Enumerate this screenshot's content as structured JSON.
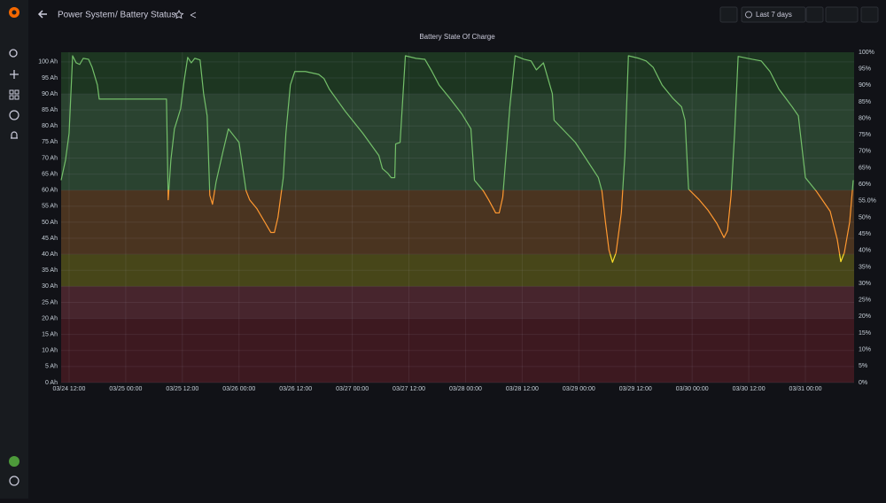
{
  "ui": {
    "breadcrumb_folder": "Power System",
    "breadcrumb_title": "/ Battery Status",
    "time_range": "Last 7 days"
  },
  "chart_data": {
    "type": "line",
    "title": "Battery State Of Charge",
    "x": [
      "03/24 10:19",
      "03/24 11:15",
      "03/24 12:00",
      "03/24 12:45",
      "03/24 13:30",
      "03/24 14:15",
      "03/24 15:00",
      "03/24 16:08",
      "03/24 16:53",
      "03/24 18:00",
      "03/24 18:23",
      "03/25 08:38",
      "03/25 09:00",
      "03/25 09:34",
      "03/25 10:19",
      "03/25 10:53",
      "03/25 11:38",
      "03/25 12:23",
      "03/25 13:08",
      "03/25 13:53",
      "03/25 14:38",
      "03/25 15:45",
      "03/25 16:30",
      "03/25 17:15",
      "03/25 17:49",
      "03/25 18:23",
      "03/25 19:08",
      "03/25 20:38",
      "03/25 21:45",
      "03/25 23:15",
      "03/26 00:00",
      "03/26 01:30",
      "03/26 02:15",
      "03/26 03:45",
      "03/26 05:38",
      "03/26 06:45",
      "03/26 07:30",
      "03/26 08:15",
      "03/26 09:23",
      "03/26 09:56",
      "03/26 10:53",
      "03/26 11:49",
      "03/26 14:04",
      "03/26 16:53",
      "03/26 18:00",
      "03/26 19:08",
      "03/26 22:30",
      "03/27 02:15",
      "03/27 05:38",
      "03/27 06:23",
      "03/27 07:30",
      "03/27 08:15",
      "03/27 09:00",
      "03/27 09:11",
      "03/27 10:08",
      "03/27 11:15",
      "03/27 13:30",
      "03/27 15:23",
      "03/27 16:53",
      "03/27 18:23",
      "03/27 20:38",
      "03/27 23:15",
      "03/28 01:08",
      "03/28 01:53",
      "03/28 03:45",
      "03/28 04:53",
      "03/28 06:23",
      "03/28 07:08",
      "03/28 07:53",
      "03/28 09:23",
      "03/28 10:30",
      "03/28 12:23",
      "03/28 13:53",
      "03/28 15:00",
      "03/28 16:30",
      "03/28 18:23",
      "03/28 18:45",
      "03/28 23:15",
      "03/29 04:08",
      "03/29 04:53",
      "03/29 05:38",
      "03/29 06:23",
      "03/29 07:08",
      "03/29 07:53",
      "03/29 09:00",
      "03/29 09:45",
      "03/29 10:30",
      "03/29 12:45",
      "03/29 14:15",
      "03/29 15:45",
      "03/29 17:38",
      "03/29 19:53",
      "03/29 21:45",
      "03/29 22:30",
      "03/29 23:15",
      "03/30 01:30",
      "03/30 03:23",
      "03/30 05:15",
      "03/30 06:45",
      "03/30 07:30",
      "03/30 08:15",
      "03/30 09:00",
      "03/30 09:45",
      "03/30 12:45",
      "03/30 14:38",
      "03/30 16:30",
      "03/30 18:23",
      "03/30 21:11",
      "03/30 22:30",
      "03/31 00:00",
      "03/31 02:15",
      "03/31 05:15",
      "03/31 06:45",
      "03/31 07:30",
      "03/31 08:15",
      "03/31 09:23",
      "03/31 10:08"
    ],
    "values": [
      63.1,
      69.4,
      77.7,
      101.9,
      99.7,
      99.2,
      101.1,
      100.8,
      98.3,
      92.8,
      88.4,
      88.4,
      57.0,
      69.4,
      79.1,
      81.8,
      85.4,
      94.2,
      101.4,
      99.7,
      101.1,
      100.6,
      90.1,
      83.2,
      58.4,
      55.6,
      62.5,
      72.2,
      79.1,
      76.3,
      74.9,
      59.8,
      57.0,
      54.3,
      49.6,
      46.8,
      46.8,
      51.5,
      63.9,
      77.7,
      92.8,
      97.0,
      97.0,
      96.1,
      94.8,
      91.5,
      84.6,
      77.7,
      70.8,
      66.7,
      65.3,
      63.9,
      63.9,
      74.4,
      74.9,
      101.9,
      101.1,
      100.8,
      97.0,
      92.8,
      88.7,
      83.7,
      79.1,
      63.1,
      59.8,
      57.0,
      52.9,
      52.9,
      57.9,
      86.0,
      101.9,
      100.8,
      100.3,
      97.5,
      99.7,
      90.1,
      81.8,
      74.9,
      63.9,
      59.8,
      50.1,
      41.3,
      37.5,
      40.5,
      52.9,
      70.8,
      101.9,
      101.1,
      100.3,
      98.3,
      92.8,
      88.7,
      86.0,
      81.8,
      60.3,
      57.0,
      53.7,
      49.6,
      45.2,
      47.4,
      58.4,
      77.7,
      101.7,
      100.8,
      100.3,
      97.0,
      91.5,
      86.0,
      83.2,
      63.9,
      59.8,
      53.4,
      44.6,
      37.7,
      40.5,
      50.1,
      63.1
    ],
    "xlim": [
      "03/24 10:19",
      "03/31 10:19"
    ],
    "xticks": [
      "03/24 12:00",
      "03/25 00:00",
      "03/25 12:00",
      "03/26 00:00",
      "03/26 12:00",
      "03/27 00:00",
      "03/27 12:00",
      "03/28 00:00",
      "03/28 12:00",
      "03/29 00:00",
      "03/29 12:00",
      "03/30 00:00",
      "03/30 12:00",
      "03/31 00:00"
    ],
    "ylim": [
      0,
      103
    ],
    "yticks": [
      {
        "value": 0,
        "label": "0 Ah"
      },
      {
        "value": 5,
        "label": "5 Ah"
      },
      {
        "value": 10,
        "label": "10 Ah"
      },
      {
        "value": 15,
        "label": "15 Ah"
      },
      {
        "value": 20,
        "label": "20 Ah"
      },
      {
        "value": 25,
        "label": "25 Ah"
      },
      {
        "value": 30,
        "label": "30 Ah"
      },
      {
        "value": 35,
        "label": "35 Ah"
      },
      {
        "value": 40,
        "label": "40 Ah"
      },
      {
        "value": 45,
        "label": "45 Ah"
      },
      {
        "value": 50,
        "label": "50 Ah"
      },
      {
        "value": 55,
        "label": "55 Ah"
      },
      {
        "value": 60,
        "label": "60 Ah"
      },
      {
        "value": 65,
        "label": "65 Ah"
      },
      {
        "value": 70,
        "label": "70 Ah"
      },
      {
        "value": 75,
        "label": "75 Ah"
      },
      {
        "value": 80,
        "label": "80 Ah"
      },
      {
        "value": 85,
        "label": "85 Ah"
      },
      {
        "value": 90,
        "label": "90 Ah"
      },
      {
        "value": 95,
        "label": "95 Ah"
      },
      {
        "value": 100,
        "label": "100 Ah"
      }
    ],
    "y2lim": [
      0,
      100
    ],
    "y2ticks": [
      {
        "value": 0,
        "label": "0%"
      },
      {
        "value": 5,
        "label": "5%"
      },
      {
        "value": 10,
        "label": "10%"
      },
      {
        "value": 15,
        "label": "15%"
      },
      {
        "value": 20,
        "label": "20%"
      },
      {
        "value": 25,
        "label": "25%"
      },
      {
        "value": 30,
        "label": "30%"
      },
      {
        "value": 35,
        "label": "35%"
      },
      {
        "value": 40,
        "label": "40%"
      },
      {
        "value": 45,
        "label": "45%"
      },
      {
        "value": 50,
        "label": "50%"
      },
      {
        "value": 55,
        "label": "55.0%"
      },
      {
        "value": 60,
        "label": "60%"
      },
      {
        "value": 65,
        "label": "65%"
      },
      {
        "value": 70,
        "label": "70%"
      },
      {
        "value": 75,
        "label": "75%"
      },
      {
        "value": 80,
        "label": "80%"
      },
      {
        "value": 85,
        "label": "85%"
      },
      {
        "value": 90,
        "label": "90%"
      },
      {
        "value": 95,
        "label": "95%"
      },
      {
        "value": 100,
        "label": "100%"
      }
    ],
    "grid": true,
    "bands": [
      {
        "from": 0,
        "color": "#3d1920"
      },
      {
        "from": 20,
        "color": "#47252d"
      },
      {
        "from": 30,
        "color": "#474619"
      },
      {
        "from": 40,
        "color": "#4a3420"
      },
      {
        "from": 60,
        "color": "#2a4330"
      },
      {
        "from": 90,
        "color": "#1d3621"
      }
    ],
    "line_colors": [
      {
        "from": 0,
        "color": "#fade2a"
      },
      {
        "from": 40,
        "color": "#ff9830"
      },
      {
        "from": 60,
        "color": "#73bf69"
      }
    ]
  }
}
